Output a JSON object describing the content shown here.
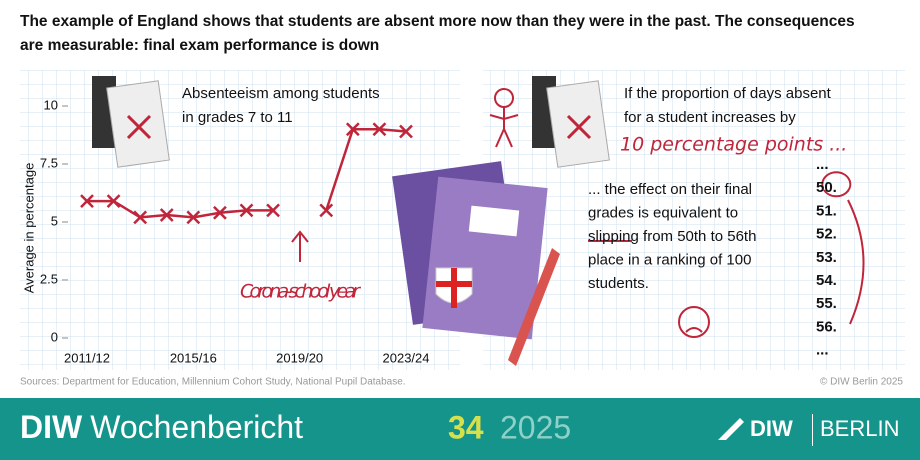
{
  "header": {
    "title_lines": [
      "The example of England shows that students are absent more now than they were in the past. The consequences",
      "are measurable: final exam performance is down"
    ]
  },
  "chart_data": {
    "type": "line",
    "title_lines": [
      "Absenteeism among students",
      "in grades 7 to 11"
    ],
    "ylabel": "Average in percentage",
    "annotation": "Corona-school year",
    "categories": [
      "2011/12",
      null,
      null,
      null,
      "2015/16",
      null,
      null,
      null,
      "2019/20",
      null,
      null,
      null,
      "2023/24"
    ],
    "series": [
      {
        "name": "Absenteeism",
        "color": "#c0253a",
        "values": [
          5.9,
          5.9,
          5.2,
          5.3,
          5.2,
          5.4,
          5.5,
          5.5,
          null,
          5.5,
          9.0,
          9.0,
          8.9
        ]
      }
    ],
    "ylim": [
      0,
      10.6
    ],
    "yticks": [
      0,
      2.5,
      5,
      7.5,
      10
    ],
    "grid": false,
    "legend": false
  },
  "panel": {
    "intro_lines": [
      "If the proportion of days absent",
      "for a student increases by"
    ],
    "highlight": "10 percentage points ...",
    "effect_lines": [
      "... the effect on their final",
      "grades is equivalent to",
      "slipping from 50th to 56th",
      "place in a ranking of 100",
      "students."
    ],
    "ranking": [
      "...",
      "50.",
      "51.",
      "52.",
      "53.",
      "54.",
      "55.",
      "56.",
      "..."
    ]
  },
  "source": "Sources: Department for Education, Millennium Cohort Study, National Pupil Database.",
  "copyright": "© DIW Berlin 2025",
  "footer": {
    "brand": "DIW",
    "publication": "Wochenbericht",
    "issue": "34",
    "year": "2025",
    "logo_a": "DIW",
    "logo_b": "BERLIN"
  }
}
